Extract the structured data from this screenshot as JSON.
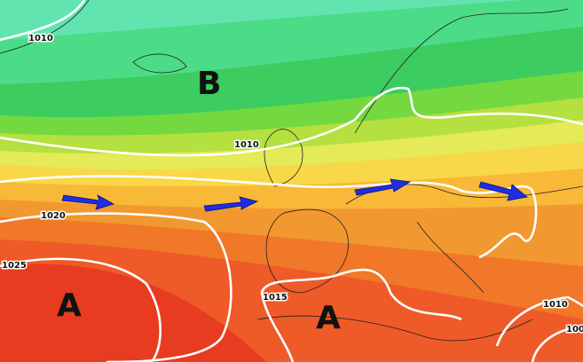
{
  "map": {
    "isobar_labels": [
      "1010",
      "1010",
      "1020",
      "1025",
      "1015",
      "1010",
      "100"
    ],
    "pressure_centers": [
      "B",
      "A",
      "A"
    ]
  }
}
